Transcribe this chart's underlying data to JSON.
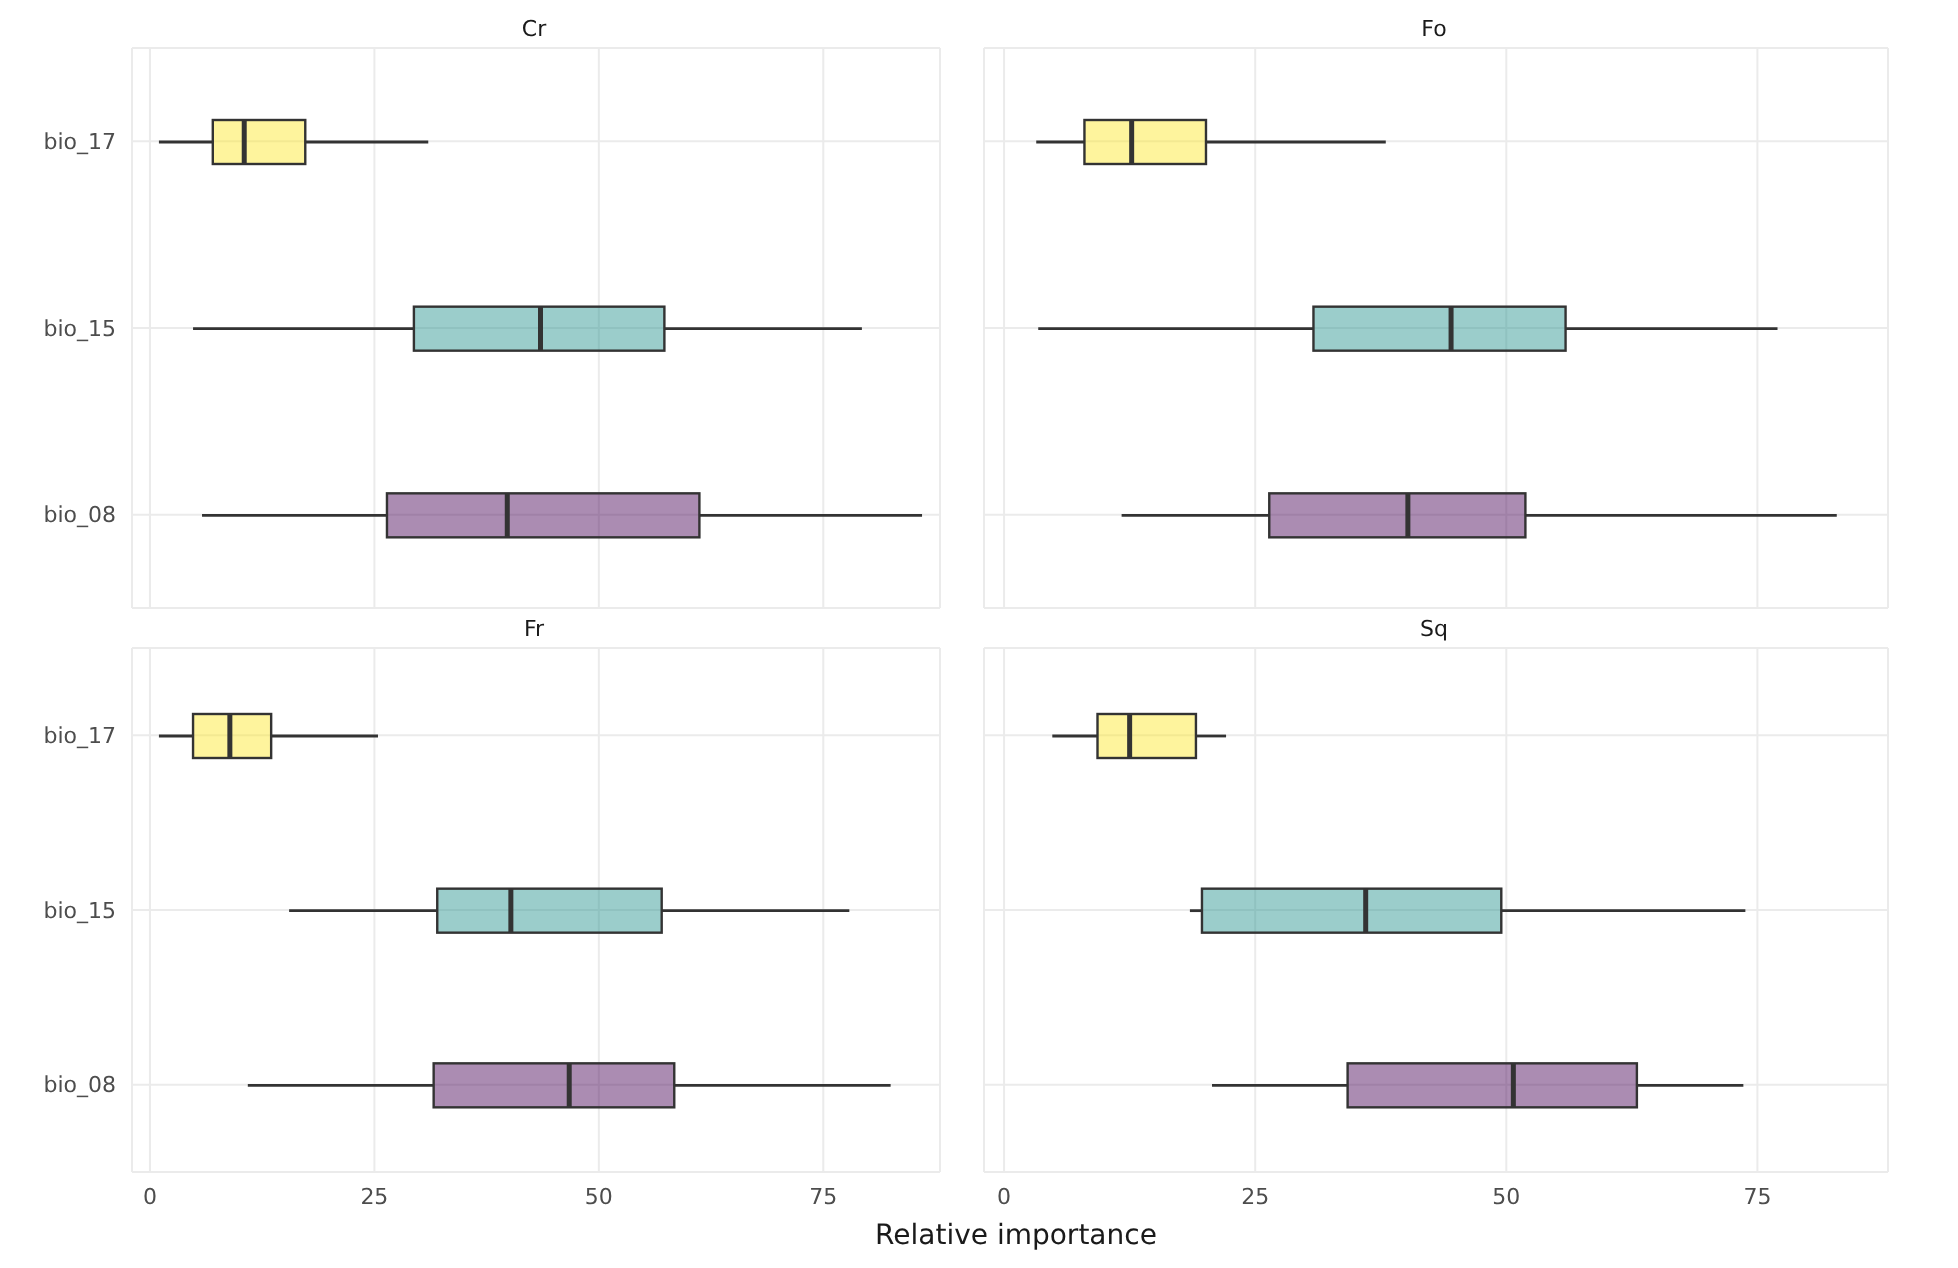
{
  "chart_data": [
    {
      "type": "box",
      "title": "Cr",
      "orientation": "horizontal",
      "categories": [
        "bio_17",
        "bio_15",
        "bio_08"
      ],
      "colors": [
        "#fde725",
        "#21908c",
        "#440154"
      ],
      "xlim": [
        -2,
        88
      ],
      "xticks": [
        0,
        25,
        50,
        75
      ],
      "grid": true,
      "tick_labels": "y",
      "boxes": [
        {
          "low": 1,
          "q1": 7,
          "median": 10.5,
          "q3": 17.3,
          "high": 31
        },
        {
          "low": 4.8,
          "q1": 29.4,
          "median": 43.5,
          "q3": 57.3,
          "high": 79.3
        },
        {
          "low": 5.8,
          "q1": 26.4,
          "median": 39.8,
          "q3": 61.2,
          "high": 86
        }
      ]
    },
    {
      "type": "box",
      "title": "Fo",
      "orientation": "horizontal",
      "categories": [
        null,
        null,
        null
      ],
      "colors": [
        "#fde725",
        "#21908c",
        "#440154"
      ],
      "xlim": [
        -2,
        88
      ],
      "xticks": [
        0,
        25,
        50,
        75
      ],
      "grid": true,
      "tick_labels": false,
      "boxes": [
        {
          "low": 3.2,
          "q1": 8,
          "median": 12.7,
          "q3": 20.1,
          "high": 38
        },
        {
          "low": 3.4,
          "q1": 30.8,
          "median": 44.5,
          "q3": 55.9,
          "high": 77
        },
        {
          "low": 11.7,
          "q1": 26.4,
          "median": 40.2,
          "q3": 51.9,
          "high": 82.9
        }
      ]
    },
    {
      "type": "box",
      "title": "Fr",
      "orientation": "horizontal",
      "categories": [
        "bio_17",
        "bio_15",
        "bio_08"
      ],
      "colors": [
        "#fde725",
        "#21908c",
        "#440154"
      ],
      "xlim": [
        -2,
        88
      ],
      "xticks": [
        0,
        25,
        50,
        75
      ],
      "grid": true,
      "xlabel": "Relative importance",
      "boxes": [
        {
          "low": 1,
          "q1": 4.8,
          "median": 8.9,
          "q3": 13.5,
          "high": 25.4
        },
        {
          "low": 15.5,
          "q1": 32,
          "median": 40.2,
          "q3": 57,
          "high": 77.9
        },
        {
          "low": 10.9,
          "q1": 31.6,
          "median": 46.7,
          "q3": 58.4,
          "high": 82.5
        }
      ]
    },
    {
      "type": "box",
      "title": "Sq",
      "orientation": "horizontal",
      "categories": [
        null,
        null,
        null
      ],
      "colors": [
        "#fde725",
        "#21908c",
        "#440154"
      ],
      "xlim": [
        -2,
        88
      ],
      "xticks": [
        0,
        25,
        50,
        75
      ],
      "grid": true,
      "tick_labels": "x",
      "boxes": [
        {
          "low": 4.8,
          "q1": 9.3,
          "median": 12.5,
          "q3": 19.1,
          "high": 22.1
        },
        {
          "low": 18.5,
          "q1": 19.7,
          "median": 36,
          "q3": 49.5,
          "high": 73.8
        },
        {
          "low": 20.7,
          "q1": 34.2,
          "median": 50.7,
          "q3": 63,
          "high": 73.6
        }
      ]
    }
  ]
}
